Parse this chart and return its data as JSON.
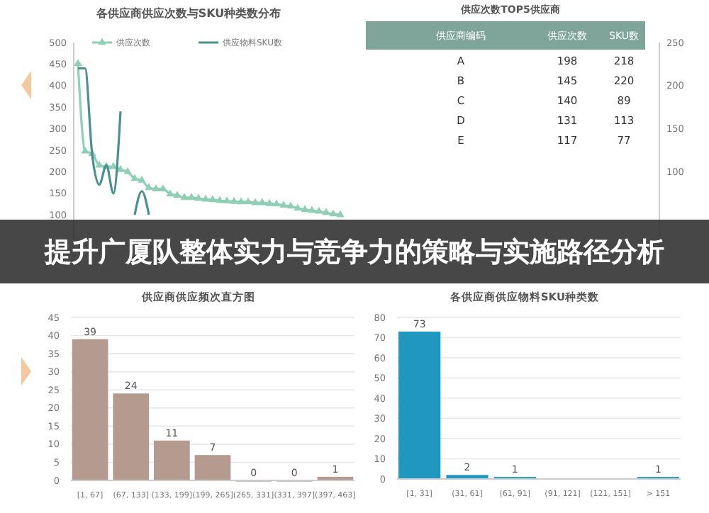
{
  "chart_data": [
    {
      "type": "line",
      "title": "各供应商供应次数与SKU种类数分布",
      "categories": [
        null,
        null,
        null,
        null,
        null,
        null,
        null,
        null,
        null,
        null,
        null,
        null,
        null,
        null,
        null,
        null,
        null,
        null,
        null,
        null,
        null,
        null,
        null,
        null,
        null,
        null,
        null,
        null,
        null,
        null,
        null,
        null,
        null,
        null,
        null,
        null,
        null,
        null
      ],
      "series": [
        {
          "name": "供应次数",
          "color": "#8fcfb5",
          "marker": "triangle",
          "values": [
            451,
            248,
            242,
            215,
            212,
            212,
            205,
            200,
            184,
            180,
            163,
            160,
            160,
            148,
            145,
            140,
            140,
            138,
            136,
            135,
            133,
            132,
            131,
            130,
            130,
            128,
            128,
            126,
            125,
            122,
            120,
            115,
            112,
            110,
            108,
            105,
            102,
            100
          ]
        },
        {
          "name": "供应物料SKU数",
          "color": "#4a8f91",
          "values": [
            440,
            440,
            240,
            170,
            215,
            150,
            340,
            null,
            100,
            155,
            100,
            null,
            null,
            null,
            null,
            null,
            null,
            null,
            null,
            null,
            null,
            null,
            null,
            null,
            null,
            null,
            null,
            null,
            null,
            null,
            null,
            null,
            null,
            null,
            null,
            null,
            null,
            null
          ]
        }
      ],
      "ylim": [
        0,
        500
      ],
      "yticks": [
        100,
        150,
        200,
        250,
        300,
        350,
        400,
        450,
        500
      ],
      "y2lim": [
        0,
        250
      ],
      "y2ticks": [
        100,
        150,
        200,
        250
      ],
      "legend": "top",
      "tick_labels": "y"
    },
    {
      "type": "other",
      "title": "供应次数TOP5供应商",
      "xlabel": "供应商编码",
      "categories": [
        "A",
        "B",
        "C",
        "D",
        "E"
      ],
      "data_labels": true,
      "series": [
        {
          "name": "供应次数",
          "values": [
            198,
            145,
            140,
            131,
            117
          ]
        },
        {
          "name": "SKU数",
          "values": [
            218,
            220,
            89,
            113,
            77
          ]
        }
      ]
    },
    {
      "type": "other",
      "title": "提升广厦队整体实力与竞争力的策略与实施路径分析"
    },
    {
      "type": "bar",
      "title": "供应商供应频次直方图",
      "categories": [
        "[1, 67]",
        "(67, 133]",
        "(133, 199]",
        "(199, 265]",
        "(265, 331]",
        "(331, 397]",
        "(397, 463]"
      ],
      "values": [
        39,
        24,
        11,
        7,
        0,
        0,
        1
      ],
      "color": "#b59a90",
      "ylim": [
        0,
        45
      ],
      "yticks": [
        0,
        5,
        10,
        15,
        20,
        25,
        30,
        35,
        40,
        45
      ],
      "grid": "y",
      "data_labels": true
    },
    {
      "type": "bar",
      "title": "各供应商供应物料SKU种类数",
      "categories": [
        "[1, 31]",
        "(31, 61]",
        "(61, 91]",
        "(91, 121]",
        "(121, 151]",
        "> 151"
      ],
      "values": [
        73,
        2,
        1,
        null,
        null,
        1
      ],
      "color": "#1f97bf",
      "ylim": [
        0,
        80
      ],
      "yticks": [
        0,
        10,
        20,
        30,
        40,
        50,
        60,
        70,
        80
      ],
      "grid": "y",
      "data_labels": true
    }
  ]
}
